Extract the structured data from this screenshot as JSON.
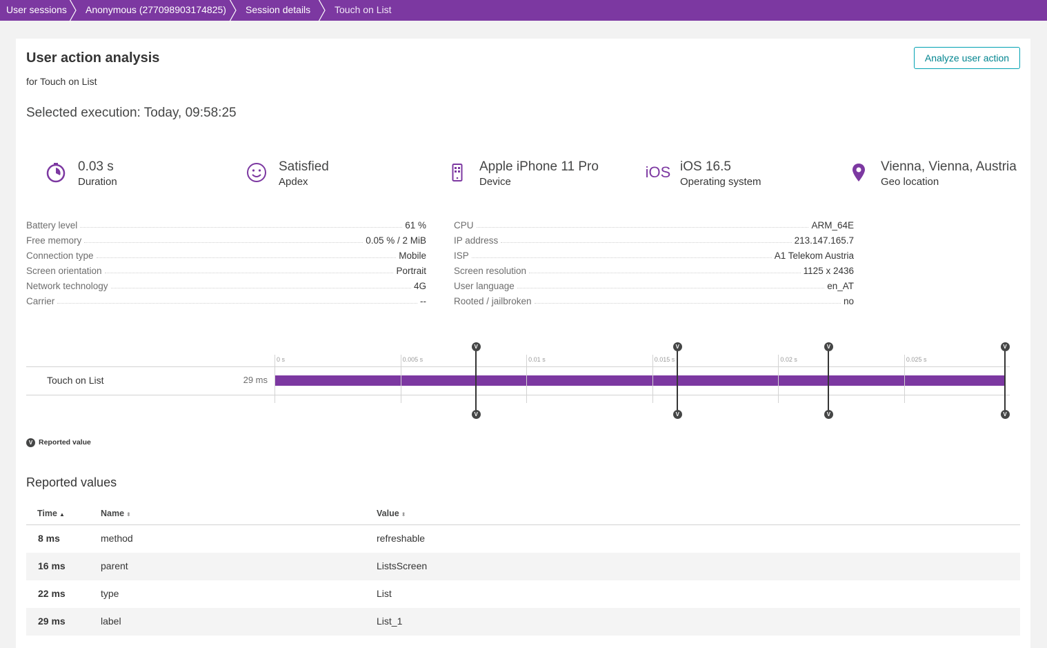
{
  "breadcrumb": {
    "items": [
      {
        "label": "User sessions"
      },
      {
        "label": "Anonymous (277098903174825)"
      },
      {
        "label": "Session details"
      },
      {
        "label": "Touch on List"
      }
    ]
  },
  "colors": {
    "brand": "#7c38a1",
    "accent": "#00a1b2"
  },
  "header": {
    "title": "User action analysis",
    "subtitle": "for Touch on List",
    "analyze_button": "Analyze user action",
    "selected_execution": "Selected execution: Today, 09:58:25"
  },
  "kpis": [
    {
      "icon": "timer-icon",
      "value": "0.03 s",
      "label": "Duration"
    },
    {
      "icon": "smiley-icon",
      "value": "Satisfied",
      "label": "Apdex"
    },
    {
      "icon": "mobile-device-icon",
      "value": "Apple iPhone 11 Pro",
      "label": "Device"
    },
    {
      "icon": "ios-icon",
      "icon_text": "iOS",
      "value": "iOS 16.5",
      "label": "Operating system"
    },
    {
      "icon": "location-pin-icon",
      "value": "Vienna, Vienna, Austria",
      "label": "Geo location"
    }
  ],
  "properties_left": [
    {
      "key": "Battery level",
      "value": "61 %"
    },
    {
      "key": "Free memory",
      "value": "0.05 % / 2 MiB"
    },
    {
      "key": "Connection type",
      "value": "Mobile"
    },
    {
      "key": "Screen orientation",
      "value": "Portrait"
    },
    {
      "key": "Network technology",
      "value": "4G"
    },
    {
      "key": "Carrier",
      "value": "--"
    }
  ],
  "properties_right": [
    {
      "key": "CPU",
      "value": "ARM_64E"
    },
    {
      "key": "IP address",
      "value": "213.147.165.7"
    },
    {
      "key": "ISP",
      "value": "A1 Telekom Austria"
    },
    {
      "key": "Screen resolution",
      "value": "1125 x 2436"
    },
    {
      "key": "User language",
      "value": "en_AT"
    },
    {
      "key": "Rooted / jailbroken",
      "value": "no"
    }
  ],
  "timeline": {
    "action_name": "Touch on List",
    "duration_label": "29 ms",
    "duration_ms": 29,
    "ticks": [
      "0 s",
      "0.005 s",
      "0.01 s",
      "0.015 s",
      "0.02 s",
      "0.025 s"
    ],
    "tick_values_ms": [
      0,
      5,
      10,
      15,
      20,
      25
    ],
    "marker_symbol": "V",
    "markers_ms": [
      8,
      16,
      22,
      29
    ],
    "legend": "Reported value"
  },
  "reported_values": {
    "title": "Reported values",
    "columns": {
      "time": "Time",
      "name": "Name",
      "value": "Value"
    },
    "rows": [
      {
        "time": "8 ms",
        "name": "method",
        "value": "refreshable"
      },
      {
        "time": "16 ms",
        "name": "parent",
        "value": "ListsScreen"
      },
      {
        "time": "22 ms",
        "name": "type",
        "value": "List"
      },
      {
        "time": "29 ms",
        "name": "label",
        "value": "List_1"
      }
    ]
  }
}
